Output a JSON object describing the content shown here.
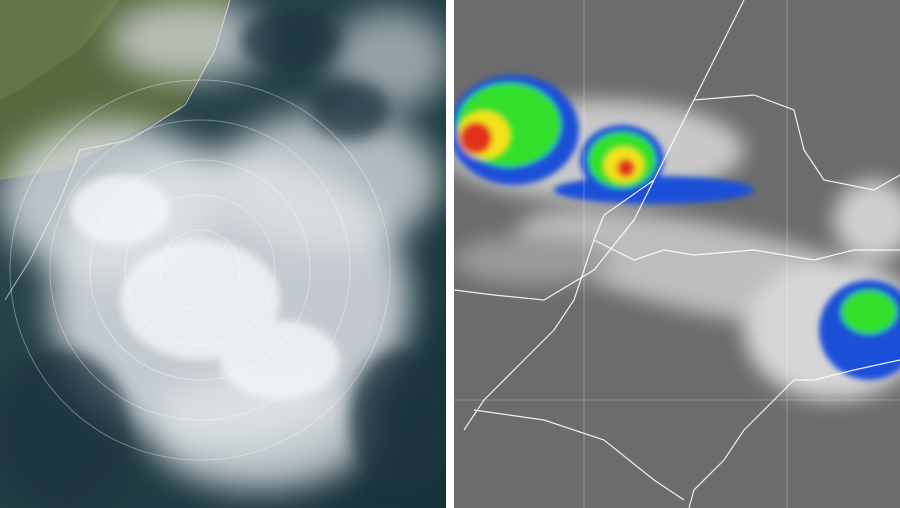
{
  "colors": {
    "ocean": "#1f3a44",
    "land": "#5a6b3c",
    "cloud": "#e6e9ec",
    "ir_background": "#6e6e6e",
    "ir_cloud": "#d8d8d8",
    "storm_green": "#33e02a",
    "storm_yellow": "#f2e21a",
    "storm_red": "#e2321a",
    "storm_blue": "#1f4fd8",
    "border_lines": "#ffffff",
    "divider": "#ffffff"
  }
}
